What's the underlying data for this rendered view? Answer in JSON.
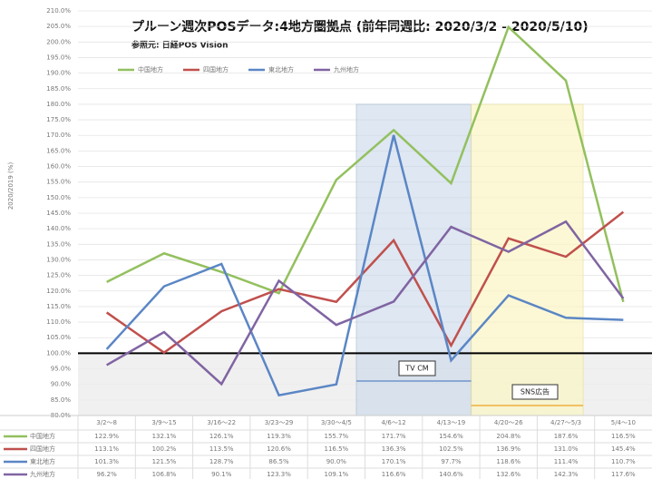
{
  "chart_data": {
    "type": "line",
    "title": "プルーン週次POSデータ:4地方圏拠点 (前年同週比: 2020/3/2 - 2020/5/10)",
    "subtitle": "参照元: 日経POS Vision",
    "y_label": "2020/2019 (%)",
    "annotations": [
      "TV CM",
      "SNS広告"
    ],
    "categories": [
      "3/2～8",
      "3/9～15",
      "3/16～22",
      "3/23～29",
      "3/30～4/5",
      "4/6～12",
      "4/13～19",
      "4/20～26",
      "4/27～5/3",
      "5/4～10"
    ],
    "series": [
      {
        "name": "中国地方",
        "color": "#93c05e",
        "values": [
          122.9,
          132.1,
          126.1,
          119.3,
          155.7,
          171.7,
          154.6,
          204.8,
          187.6,
          116.5
        ],
        "value_labels": [
          "122.9%",
          "132.1%",
          "126.1%",
          "119.3%",
          "155.7%",
          "171.7%",
          "154.6%",
          "204.8%",
          "187.6%",
          "116.5%"
        ]
      },
      {
        "name": "四国地方",
        "color": "#c0504d",
        "values": [
          113.1,
          100.2,
          113.5,
          120.6,
          116.5,
          136.3,
          102.5,
          136.9,
          131.0,
          145.4
        ],
        "value_labels": [
          "113.1%",
          "100.2%",
          "113.5%",
          "120.6%",
          "116.5%",
          "136.3%",
          "102.5%",
          "136.9%",
          "131.0%",
          "145.4%"
        ]
      },
      {
        "name": "東北地方",
        "color": "#5b86c5",
        "values": [
          101.3,
          121.5,
          128.7,
          86.5,
          90.0,
          170.1,
          97.7,
          118.6,
          111.4,
          110.7
        ],
        "value_labels": [
          "101.3%",
          "121.5%",
          "128.7%",
          "86.5%",
          "90.0%",
          "170.1%",
          "97.7%",
          "118.6%",
          "111.4%",
          "110.7%"
        ]
      },
      {
        "name": "九州地方",
        "color": "#8064a2",
        "values": [
          96.2,
          106.8,
          90.1,
          123.3,
          109.1,
          116.6,
          140.6,
          132.6,
          142.3,
          117.6
        ],
        "value_labels": [
          "96.2%",
          "106.8%",
          "90.1%",
          "123.3%",
          "109.1%",
          "116.6%",
          "140.6%",
          "132.6%",
          "142.3%",
          "117.6%"
        ]
      }
    ],
    "ylim": [
      80,
      210
    ],
    "yticks": [
      {
        "value": 80,
        "label": "80.0%"
      },
      {
        "value": 85,
        "label": "85.0%"
      },
      {
        "value": 90,
        "label": "90.0%"
      },
      {
        "value": 95,
        "label": "95.0%"
      },
      {
        "value": 100,
        "label": "100.0%"
      },
      {
        "value": 105,
        "label": "105.0%"
      },
      {
        "value": 110,
        "label": "110.0%"
      },
      {
        "value": 115,
        "label": "115.0%"
      },
      {
        "value": 120,
        "label": "120.0%"
      },
      {
        "value": 125,
        "label": "125.0%"
      },
      {
        "value": 130,
        "label": "130.0%"
      },
      {
        "value": 135,
        "label": "135.0%"
      },
      {
        "value": 140,
        "label": "140.0%"
      },
      {
        "value": 145,
        "label": "145.0%"
      },
      {
        "value": 150,
        "label": "150.0%"
      },
      {
        "value": 155,
        "label": "155.0%"
      },
      {
        "value": 160,
        "label": "160.0%"
      },
      {
        "value": 165,
        "label": "165.0%"
      },
      {
        "value": 170,
        "label": "170.0%"
      },
      {
        "value": 175,
        "label": "175.0%"
      },
      {
        "value": 180,
        "label": "180.0%"
      },
      {
        "value": 185,
        "label": "185.0%"
      },
      {
        "value": 190,
        "label": "190.0%"
      },
      {
        "value": 195,
        "label": "195.0%"
      },
      {
        "value": 200,
        "label": "200.0%"
      },
      {
        "value": 205,
        "label": "205.0%"
      },
      {
        "value": 210,
        "label": "210.0%"
      }
    ],
    "baseline": 100,
    "grid": true
  }
}
